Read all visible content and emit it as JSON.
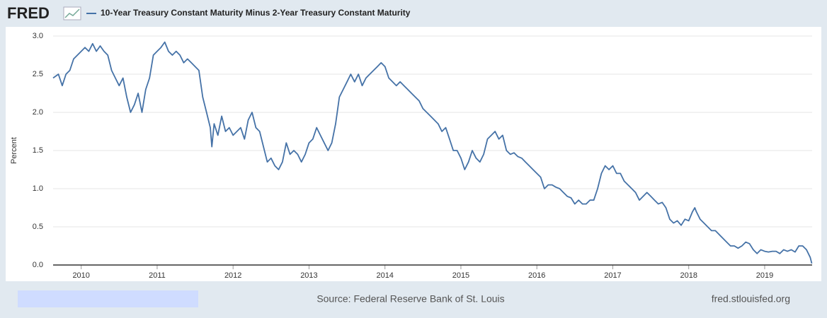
{
  "brand": "FRED",
  "footer": {
    "source": "Source: Federal Reserve Bank of St. Louis",
    "site": "fred.stlouisfed.org"
  },
  "chart_data": {
    "type": "line",
    "ylabel": "Percent",
    "x": [
      2009.63,
      2009.7,
      2009.75,
      2009.8,
      2009.85,
      2009.9,
      2010.0,
      2010.05,
      2010.1,
      2010.15,
      2010.2,
      2010.25,
      2010.3,
      2010.35,
      2010.4,
      2010.45,
      2010.5,
      2010.55,
      2010.6,
      2010.65,
      2010.7,
      2010.75,
      2010.8,
      2010.85,
      2010.9,
      2010.95,
      2011.0,
      2011.05,
      2011.1,
      2011.15,
      2011.2,
      2011.25,
      2011.3,
      2011.35,
      2011.4,
      2011.45,
      2011.5,
      2011.55,
      2011.6,
      2011.65,
      2011.7,
      2011.72,
      2011.75,
      2011.8,
      2011.85,
      2011.9,
      2011.95,
      2012.0,
      2012.05,
      2012.1,
      2012.15,
      2012.2,
      2012.25,
      2012.3,
      2012.35,
      2012.4,
      2012.45,
      2012.5,
      2012.55,
      2012.6,
      2012.65,
      2012.7,
      2012.75,
      2012.8,
      2012.85,
      2012.9,
      2012.95,
      2013.0,
      2013.05,
      2013.1,
      2013.15,
      2013.2,
      2013.25,
      2013.3,
      2013.35,
      2013.4,
      2013.45,
      2013.5,
      2013.55,
      2013.6,
      2013.65,
      2013.7,
      2013.75,
      2013.8,
      2013.85,
      2013.9,
      2013.95,
      2014.0,
      2014.05,
      2014.1,
      2014.15,
      2014.2,
      2014.25,
      2014.3,
      2014.35,
      2014.4,
      2014.45,
      2014.5,
      2014.55,
      2014.6,
      2014.65,
      2014.7,
      2014.75,
      2014.8,
      2014.85,
      2014.9,
      2014.95,
      2015.0,
      2015.05,
      2015.1,
      2015.15,
      2015.2,
      2015.25,
      2015.3,
      2015.35,
      2015.4,
      2015.45,
      2015.5,
      2015.55,
      2015.6,
      2015.65,
      2015.7,
      2015.75,
      2015.8,
      2015.85,
      2015.9,
      2015.95,
      2016.0,
      2016.05,
      2016.1,
      2016.15,
      2016.2,
      2016.25,
      2016.3,
      2016.35,
      2016.4,
      2016.45,
      2016.5,
      2016.55,
      2016.6,
      2016.65,
      2016.7,
      2016.75,
      2016.8,
      2016.85,
      2016.9,
      2016.95,
      2017.0,
      2017.05,
      2017.1,
      2017.15,
      2017.2,
      2017.25,
      2017.3,
      2017.35,
      2017.4,
      2017.45,
      2017.5,
      2017.55,
      2017.6,
      2017.65,
      2017.7,
      2017.75,
      2017.8,
      2017.85,
      2017.9,
      2017.95,
      2018.0,
      2018.05,
      2018.08,
      2018.1,
      2018.15,
      2018.2,
      2018.25,
      2018.3,
      2018.35,
      2018.4,
      2018.45,
      2018.5,
      2018.55,
      2018.6,
      2018.65,
      2018.7,
      2018.75,
      2018.8,
      2018.85,
      2018.9,
      2018.95,
      2019.0,
      2019.05,
      2019.1,
      2019.15,
      2019.2,
      2019.25,
      2019.3,
      2019.35,
      2019.4,
      2019.45,
      2019.5,
      2019.55,
      2019.6,
      2019.62
    ],
    "series": [
      {
        "name": "10-Year Treasury Constant Maturity Minus 2-Year Treasury Constant Maturity",
        "color": "#4572a7",
        "values": [
          2.45,
          2.5,
          2.35,
          2.5,
          2.55,
          2.7,
          2.8,
          2.85,
          2.8,
          2.9,
          2.8,
          2.87,
          2.8,
          2.75,
          2.55,
          2.45,
          2.35,
          2.45,
          2.2,
          2.0,
          2.1,
          2.25,
          2.0,
          2.3,
          2.45,
          2.75,
          2.8,
          2.85,
          2.92,
          2.8,
          2.75,
          2.8,
          2.75,
          2.65,
          2.7,
          2.65,
          2.6,
          2.55,
          2.2,
          2.0,
          1.8,
          1.55,
          1.85,
          1.7,
          1.95,
          1.75,
          1.8,
          1.7,
          1.75,
          1.8,
          1.65,
          1.9,
          2.0,
          1.8,
          1.75,
          1.55,
          1.35,
          1.4,
          1.3,
          1.25,
          1.35,
          1.6,
          1.45,
          1.5,
          1.45,
          1.35,
          1.45,
          1.6,
          1.65,
          1.8,
          1.7,
          1.6,
          1.5,
          1.6,
          1.85,
          2.2,
          2.3,
          2.4,
          2.5,
          2.4,
          2.5,
          2.35,
          2.45,
          2.5,
          2.55,
          2.6,
          2.65,
          2.6,
          2.45,
          2.4,
          2.35,
          2.4,
          2.35,
          2.3,
          2.25,
          2.2,
          2.15,
          2.05,
          2.0,
          1.95,
          1.9,
          1.85,
          1.75,
          1.8,
          1.65,
          1.5,
          1.5,
          1.4,
          1.25,
          1.35,
          1.5,
          1.4,
          1.35,
          1.45,
          1.65,
          1.7,
          1.75,
          1.65,
          1.7,
          1.5,
          1.45,
          1.47,
          1.42,
          1.4,
          1.35,
          1.3,
          1.25,
          1.2,
          1.15,
          1.0,
          1.05,
          1.05,
          1.02,
          1.0,
          0.95,
          0.9,
          0.88,
          0.8,
          0.85,
          0.8,
          0.8,
          0.85,
          0.85,
          1.0,
          1.2,
          1.3,
          1.25,
          1.3,
          1.2,
          1.2,
          1.1,
          1.05,
          1.0,
          0.95,
          0.85,
          0.9,
          0.95,
          0.9,
          0.85,
          0.8,
          0.82,
          0.75,
          0.6,
          0.55,
          0.58,
          0.52,
          0.6,
          0.58,
          0.7,
          0.75,
          0.7,
          0.6,
          0.55,
          0.5,
          0.45,
          0.45,
          0.4,
          0.35,
          0.3,
          0.25,
          0.25,
          0.22,
          0.25,
          0.3,
          0.28,
          0.2,
          0.15,
          0.2,
          0.18,
          0.17,
          0.18,
          0.18,
          0.15,
          0.2,
          0.18,
          0.2,
          0.17,
          0.25,
          0.25,
          0.2,
          0.1,
          0.02
        ]
      }
    ],
    "xlim": [
      2009.63,
      2019.625
    ],
    "xticks": [
      2010,
      2011,
      2012,
      2013,
      2014,
      2015,
      2016,
      2017,
      2018,
      2019
    ],
    "ylim": [
      0,
      3
    ],
    "yticks": [
      {
        "value": 0,
        "label": "0.0"
      },
      0.5,
      {
        "value": 1,
        "label": "1.0"
      },
      1.5,
      {
        "value": 2,
        "label": "2.0"
      },
      2.5,
      {
        "value": 3,
        "label": "3.0"
      }
    ],
    "grid": true
  }
}
